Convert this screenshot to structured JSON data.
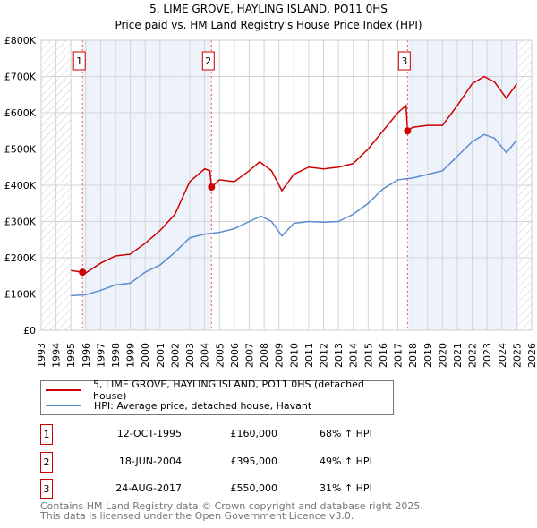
{
  "chart_data": {
    "type": "line",
    "title": "5, LIME GROVE, HAYLING ISLAND, PO11 0HS",
    "subtitle": "Price paid vs. HM Land Registry's House Price Index (HPI)",
    "xlim": [
      1993,
      2026
    ],
    "ylim": [
      0,
      800000
    ],
    "y_ticks": [
      {
        "v": 0,
        "label": "£0"
      },
      {
        "v": 100000,
        "label": "£100K"
      },
      {
        "v": 200000,
        "label": "£200K"
      },
      {
        "v": 300000,
        "label": "£300K"
      },
      {
        "v": 400000,
        "label": "£400K"
      },
      {
        "v": 500000,
        "label": "£500K"
      },
      {
        "v": 600000,
        "label": "£600K"
      },
      {
        "v": 700000,
        "label": "£700K"
      },
      {
        "v": 800000,
        "label": "£800K"
      }
    ],
    "x_ticks": [
      "1993",
      "1994",
      "1995",
      "1996",
      "1997",
      "1998",
      "1999",
      "2000",
      "2001",
      "2002",
      "2003",
      "2004",
      "2005",
      "2006",
      "2007",
      "2008",
      "2009",
      "2010",
      "2011",
      "2012",
      "2013",
      "2014",
      "2015",
      "2016",
      "2017",
      "2018",
      "2019",
      "2020",
      "2021",
      "2022",
      "2023",
      "2024",
      "2025",
      "2026"
    ],
    "hatched_ranges": [
      [
        1993,
        1995
      ],
      [
        2025.1,
        2026
      ]
    ],
    "shaded_ranges": [
      [
        1995.78,
        2004.46
      ],
      [
        2017.65,
        2025.1
      ]
    ],
    "series": [
      {
        "name": "5, LIME GROVE, HAYLING ISLAND, PO11 0HS (detached house)",
        "color": "#cc0000",
        "points": [
          [
            1995,
            165000
          ],
          [
            1995.78,
            160000
          ],
          [
            1996,
            158000
          ],
          [
            1997,
            185000
          ],
          [
            1998,
            205000
          ],
          [
            1999,
            210000
          ],
          [
            2000,
            240000
          ],
          [
            2001,
            275000
          ],
          [
            2002,
            320000
          ],
          [
            2003,
            410000
          ],
          [
            2004,
            445000
          ],
          [
            2004.35,
            440000
          ],
          [
            2004.46,
            395000
          ],
          [
            2005,
            415000
          ],
          [
            2006,
            410000
          ],
          [
            2007,
            440000
          ],
          [
            2007.7,
            465000
          ],
          [
            2008.5,
            440000
          ],
          [
            2009.2,
            385000
          ],
          [
            2010,
            430000
          ],
          [
            2011,
            450000
          ],
          [
            2012,
            445000
          ],
          [
            2013,
            450000
          ],
          [
            2014,
            460000
          ],
          [
            2015,
            500000
          ],
          [
            2016,
            550000
          ],
          [
            2017,
            600000
          ],
          [
            2017.55,
            620000
          ],
          [
            2017.65,
            550000
          ],
          [
            2018,
            560000
          ],
          [
            2019,
            565000
          ],
          [
            2020,
            565000
          ],
          [
            2021,
            620000
          ],
          [
            2022,
            680000
          ],
          [
            2022.8,
            700000
          ],
          [
            2023.5,
            685000
          ],
          [
            2024.3,
            640000
          ],
          [
            2025,
            680000
          ]
        ]
      },
      {
        "name": "HPI: Average price, detached house, Havant",
        "color": "#5b8bd0",
        "points": [
          [
            1995,
            95000
          ],
          [
            1996,
            98000
          ],
          [
            1997,
            110000
          ],
          [
            1998,
            125000
          ],
          [
            1999,
            130000
          ],
          [
            2000,
            160000
          ],
          [
            2001,
            180000
          ],
          [
            2002,
            215000
          ],
          [
            2003,
            255000
          ],
          [
            2004,
            265000
          ],
          [
            2005,
            270000
          ],
          [
            2006,
            280000
          ],
          [
            2007,
            300000
          ],
          [
            2007.8,
            315000
          ],
          [
            2008.5,
            300000
          ],
          [
            2009.2,
            260000
          ],
          [
            2010,
            295000
          ],
          [
            2011,
            300000
          ],
          [
            2012,
            298000
          ],
          [
            2013,
            300000
          ],
          [
            2014,
            320000
          ],
          [
            2015,
            350000
          ],
          [
            2016,
            390000
          ],
          [
            2017,
            415000
          ],
          [
            2018,
            420000
          ],
          [
            2019,
            430000
          ],
          [
            2020,
            440000
          ],
          [
            2021,
            480000
          ],
          [
            2022,
            520000
          ],
          [
            2022.8,
            540000
          ],
          [
            2023.5,
            530000
          ],
          [
            2024.3,
            490000
          ],
          [
            2025,
            525000
          ]
        ]
      }
    ],
    "sales": [
      {
        "label": "1",
        "x": 1995.78,
        "y": 160000,
        "date": "12-OCT-1995",
        "price": "£160,000",
        "hpi": "68% ↑ HPI"
      },
      {
        "label": "2",
        "x": 2004.46,
        "y": 395000,
        "date": "18-JUN-2004",
        "price": "£395,000",
        "hpi": "49% ↑ HPI"
      },
      {
        "label": "3",
        "x": 2017.65,
        "y": 550000,
        "date": "24-AUG-2017",
        "price": "£550,000",
        "hpi": "31% ↑ HPI"
      }
    ]
  },
  "footer": {
    "line1": "Contains HM Land Registry data © Crown copyright and database right 2025.",
    "line2": "This data is licensed under the Open Government Licence v3.0."
  }
}
